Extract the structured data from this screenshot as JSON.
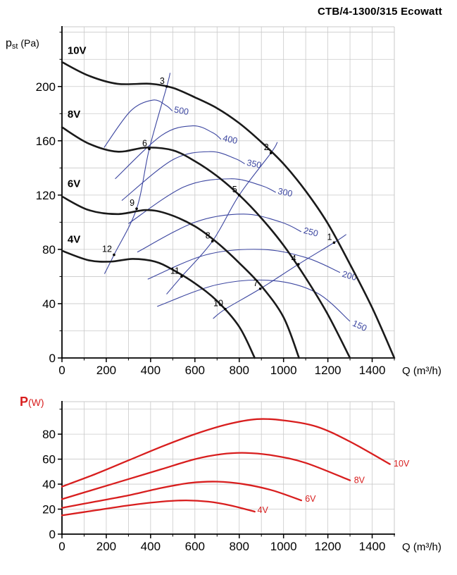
{
  "page": {
    "title": "CTB/4-1300/315 Ecowatt"
  },
  "chart_data": [
    {
      "id": "pressure",
      "type": "line",
      "title": "Static pressure vs airflow",
      "ylabel_parts": {
        "main": "p",
        "sub": "st",
        "unit": " (Pa)"
      },
      "xlabel": "Q (m³/h)",
      "xlim": [
        0,
        1500
      ],
      "ylim": [
        0,
        244
      ],
      "xticks": [
        0,
        200,
        400,
        600,
        800,
        1000,
        1200,
        1400
      ],
      "yticks": [
        0,
        40,
        80,
        120,
        160,
        200
      ],
      "grid": {
        "x_step": 100,
        "y_step": 20
      },
      "grid_color": "#c9c9c9",
      "curve_color": "#1a1a1a",
      "contour_color": "#3c46a0",
      "series": [
        {
          "name": "10V",
          "label_pos": [
            25,
            224
          ],
          "points": [
            [
              0,
              218
            ],
            [
              120,
              208
            ],
            [
              250,
              202
            ],
            [
              400,
              202
            ],
            [
              500,
              199
            ],
            [
              600,
              192
            ],
            [
              700,
              184
            ],
            [
              800,
              173
            ],
            [
              900,
              159
            ],
            [
              1000,
              143
            ],
            [
              1100,
              123
            ],
            [
              1200,
              99
            ],
            [
              1300,
              69
            ],
            [
              1400,
              37
            ],
            [
              1500,
              0
            ]
          ]
        },
        {
          "name": "8V",
          "label_pos": [
            25,
            177
          ],
          "points": [
            [
              0,
              170
            ],
            [
              120,
              158
            ],
            [
              250,
              152
            ],
            [
              380,
              155
            ],
            [
              500,
              153
            ],
            [
              600,
              145
            ],
            [
              700,
              134
            ],
            [
              800,
              120
            ],
            [
              900,
              103
            ],
            [
              1000,
              83
            ],
            [
              1100,
              59
            ],
            [
              1200,
              32
            ],
            [
              1300,
              0
            ]
          ]
        },
        {
          "name": "6V",
          "label_pos": [
            25,
            126
          ],
          "points": [
            [
              0,
              119
            ],
            [
              120,
              109
            ],
            [
              250,
              106
            ],
            [
              380,
              109
            ],
            [
              480,
              106
            ],
            [
              600,
              97
            ],
            [
              700,
              85
            ],
            [
              800,
              70
            ],
            [
              900,
              53
            ],
            [
              1000,
              30
            ],
            [
              1070,
              0
            ]
          ]
        },
        {
          "name": "4V",
          "label_pos": [
            25,
            85
          ],
          "points": [
            [
              0,
              79
            ],
            [
              120,
              72
            ],
            [
              220,
              71
            ],
            [
              320,
              73
            ],
            [
              420,
              71
            ],
            [
              500,
              65
            ],
            [
              600,
              55
            ],
            [
              700,
              42
            ],
            [
              800,
              23
            ],
            [
              870,
              0
            ]
          ]
        }
      ],
      "contours": [
        {
          "label": "500",
          "rot": 10,
          "label_at": [
            504,
            181
          ],
          "points": [
            [
              190,
              155
            ],
            [
              310,
              182
            ],
            [
              410,
              190
            ],
            [
              470,
              186
            ],
            [
              498,
              182
            ]
          ]
        },
        {
          "label": "400",
          "rot": 12,
          "label_at": [
            724,
            160
          ],
          "points": [
            [
              240,
              132
            ],
            [
              450,
              164
            ],
            [
              590,
              171
            ],
            [
              680,
              166
            ],
            [
              718,
              161
            ]
          ]
        },
        {
          "label": "350",
          "rot": 12,
          "label_at": [
            832,
            142
          ],
          "points": [
            [
              270,
              116
            ],
            [
              500,
              146
            ],
            [
              670,
              152
            ],
            [
              780,
              147
            ],
            [
              825,
              143
            ]
          ]
        },
        {
          "label": "300",
          "rot": 12,
          "label_at": [
            972,
            121
          ],
          "points": [
            [
              300,
              99
            ],
            [
              550,
              126
            ],
            [
              760,
              132
            ],
            [
              900,
              127
            ],
            [
              965,
              122
            ]
          ]
        },
        {
          "label": "250",
          "rot": 14,
          "label_at": [
            1088,
            92
          ],
          "points": [
            [
              340,
              78
            ],
            [
              600,
              100
            ],
            [
              820,
              106
            ],
            [
              990,
              100
            ],
            [
              1080,
              93
            ]
          ]
        },
        {
          "label": "200",
          "rot": 16,
          "label_at": [
            1262,
            60
          ],
          "points": [
            [
              387,
              58
            ],
            [
              650,
              76
            ],
            [
              900,
              80
            ],
            [
              1100,
              74
            ],
            [
              1255,
              63
            ]
          ]
        },
        {
          "label": "150",
          "rot": 24,
          "label_at": [
            1308,
            24
          ],
          "points": [
            [
              430,
              38
            ],
            [
              700,
              54
            ],
            [
              950,
              57
            ],
            [
              1150,
              48
            ],
            [
              1300,
              27
            ]
          ]
        }
      ],
      "selection_lines": [
        [
          [
            192,
            62
          ],
          [
            235,
            76
          ],
          [
            337,
            110
          ],
          [
            394,
            154
          ],
          [
            473,
            200
          ],
          [
            488,
            210
          ]
        ],
        [
          [
            472,
            47
          ],
          [
            540,
            60
          ],
          [
            679,
            86
          ],
          [
            800,
            120
          ],
          [
            943,
            151
          ],
          [
            972,
            159
          ]
        ],
        [
          [
            682,
            29
          ],
          [
            737,
            36
          ],
          [
            895,
            51
          ],
          [
            1067,
            69
          ],
          [
            1228,
            85
          ],
          [
            1283,
            91
          ]
        ]
      ],
      "op_points": [
        {
          "n": "1",
          "x": 1228,
          "y": 85
        },
        {
          "n": "2",
          "x": 943,
          "y": 151
        },
        {
          "n": "3",
          "x": 473,
          "y": 200
        },
        {
          "n": "4",
          "x": 1067,
          "y": 69
        },
        {
          "n": "5",
          "x": 800,
          "y": 120
        },
        {
          "n": "6",
          "x": 394,
          "y": 154
        },
        {
          "n": "7",
          "x": 895,
          "y": 51
        },
        {
          "n": "8",
          "x": 679,
          "y": 86
        },
        {
          "n": "9",
          "x": 337,
          "y": 110
        },
        {
          "n": "10",
          "x": 737,
          "y": 36
        },
        {
          "n": "11",
          "x": 540,
          "y": 60
        },
        {
          "n": "12",
          "x": 235,
          "y": 76
        }
      ]
    },
    {
      "id": "power",
      "type": "line",
      "title": "Power input vs airflow",
      "ylabel_parts": {
        "main": "P",
        "unit": "(W)"
      },
      "xlabel": "Q (m³/h)",
      "xlim": [
        0,
        1500
      ],
      "ylim": [
        0,
        106
      ],
      "xticks": [
        0,
        200,
        400,
        600,
        800,
        1000,
        1200,
        1400
      ],
      "yticks": [
        0,
        20,
        40,
        60,
        80
      ],
      "grid": {
        "x_step": 100,
        "y_step": 20
      },
      "grid_color": "#c9c9c9",
      "curve_color": "#d81e1e",
      "series": [
        {
          "name": "10V",
          "label_pos": [
            1497,
            54
          ],
          "points": [
            [
              0,
              38
            ],
            [
              150,
              48
            ],
            [
              300,
              59
            ],
            [
              450,
              70
            ],
            [
              600,
              80
            ],
            [
              750,
              88
            ],
            [
              880,
              92
            ],
            [
              1000,
              91
            ],
            [
              1150,
              86
            ],
            [
              1300,
              74
            ],
            [
              1480,
              56
            ]
          ]
        },
        {
          "name": "8V",
          "label_pos": [
            1318,
            41
          ],
          "points": [
            [
              0,
              28
            ],
            [
              150,
              36
            ],
            [
              300,
              44
            ],
            [
              450,
              52
            ],
            [
              600,
              60
            ],
            [
              720,
              64
            ],
            [
              830,
              65
            ],
            [
              950,
              63
            ],
            [
              1100,
              57
            ],
            [
              1300,
              43
            ]
          ]
        },
        {
          "name": "6V",
          "label_pos": [
            1097,
            26
          ],
          "points": [
            [
              0,
              21
            ],
            [
              150,
              26
            ],
            [
              300,
              31
            ],
            [
              450,
              37
            ],
            [
              580,
              41
            ],
            [
              700,
              42
            ],
            [
              820,
              40
            ],
            [
              950,
              35
            ],
            [
              1080,
              27
            ]
          ]
        },
        {
          "name": "4V",
          "label_pos": [
            882,
            17
          ],
          "points": [
            [
              0,
              15
            ],
            [
              150,
              19
            ],
            [
              300,
              23
            ],
            [
              450,
              26
            ],
            [
              560,
              27
            ],
            [
              660,
              26
            ],
            [
              760,
              23
            ],
            [
              870,
              18
            ]
          ]
        }
      ]
    }
  ]
}
